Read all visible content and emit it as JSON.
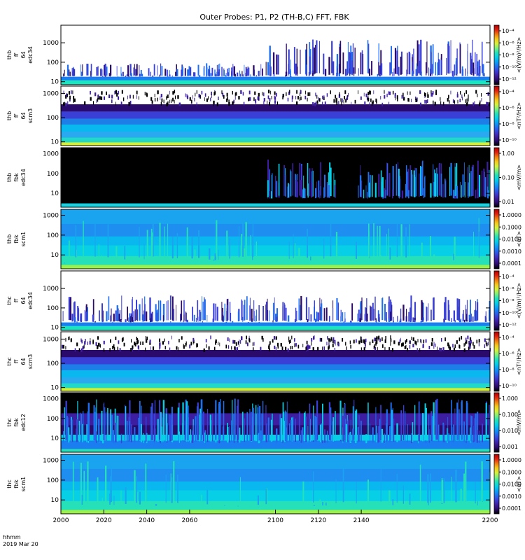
{
  "chart_data": {
    "type": "heatmap",
    "title": "Outer Probes: P1, P2 (TH-B,C) FFT, FBK",
    "x_axis": {
      "range": [
        2000,
        2200
      ],
      "ticks": [
        2000,
        2020,
        2040,
        2060,
        2100,
        2120,
        2140,
        2200
      ],
      "tick_labels": [
        "2000",
        "2020",
        "2040",
        "2060",
        "2100",
        "2120",
        "2140",
        "2200"
      ],
      "label_line1": "hhmm",
      "label_line2": "2019 Mar 20"
    },
    "y_scale": "log",
    "panels": [
      {
        "labels": [
          "thb",
          "ff",
          "64",
          "edc34"
        ],
        "yticks": [
          "1000",
          "100",
          "10"
        ],
        "ytick_values": [
          1000,
          100,
          10
        ],
        "ylim": [
          7,
          8000
        ],
        "colorbar": {
          "label": "<(V/m)²/Hz>",
          "ticks": [
            "10⁻⁴",
            "10⁻⁶",
            "10⁻⁸",
            "10⁻¹⁰",
            "10⁻¹²"
          ]
        },
        "style": "fft_e"
      },
      {
        "labels": [
          "thb",
          "ff",
          "64",
          "scm3"
        ],
        "yticks": [
          "1000",
          "100",
          "10"
        ],
        "ytick_values": [
          1000,
          100,
          10
        ],
        "ylim": [
          7,
          2000
        ],
        "colorbar": {
          "label": "<nT²/Hz>",
          "ticks": [
            "10⁻⁴",
            "10⁻⁶",
            "10⁻⁸",
            "10⁻¹⁰"
          ]
        },
        "style": "fft_b"
      },
      {
        "labels": [
          "thb",
          "fbk",
          "edc34"
        ],
        "yticks": [
          "1000",
          "100",
          "10"
        ],
        "ytick_values": [
          1000,
          100,
          10
        ],
        "ylim": [
          2,
          2000
        ],
        "colorbar": {
          "label": "<mV/m>",
          "ticks": [
            "1.00",
            "0.10",
            "0.01"
          ]
        },
        "style": "fbk_e_b"
      },
      {
        "labels": [
          "thb",
          "fbk",
          "scm1"
        ],
        "yticks": [
          "1000",
          "100",
          "10"
        ],
        "ytick_values": [
          1000,
          100,
          10
        ],
        "ylim": [
          2,
          2000
        ],
        "colorbar": {
          "label": "<nT>",
          "ticks": [
            "1.0000",
            "0.1000",
            "0.0100",
            "0.0010",
            "0.0001"
          ]
        },
        "style": "fbk_b"
      },
      {
        "labels": [
          "thc",
          "ff",
          "64",
          "edc34"
        ],
        "yticks": [
          "1000",
          "100",
          "10"
        ],
        "ytick_values": [
          1000,
          100,
          10
        ],
        "ylim": [
          7,
          8000
        ],
        "colorbar": {
          "label": "<(V/m)²/Hz>",
          "ticks": [
            "10⁻⁴",
            "10⁻⁶",
            "10⁻⁸",
            "10⁻¹⁰",
            "10⁻¹²"
          ]
        },
        "style": "fft_e_c"
      },
      {
        "labels": [
          "thc",
          "ff",
          "64",
          "scm3"
        ],
        "yticks": [
          "1000",
          "100",
          "10"
        ],
        "ytick_values": [
          1000,
          100,
          10
        ],
        "ylim": [
          7,
          2000
        ],
        "colorbar": {
          "label": "<nT²/Hz>",
          "ticks": [
            "10⁻⁴",
            "10⁻⁶",
            "10⁻⁸",
            "10⁻¹⁰"
          ]
        },
        "style": "fft_b"
      },
      {
        "labels": [
          "thc",
          "fbk",
          "edc12"
        ],
        "yticks": [
          "1000",
          "100",
          "10"
        ],
        "ytick_values": [
          1000,
          100,
          10
        ],
        "ylim": [
          2,
          2000
        ],
        "colorbar": {
          "label": "<mV/m>",
          "ticks": [
            "1.000",
            "0.100",
            "0.010",
            "0.001"
          ]
        },
        "style": "fbk_e_c"
      },
      {
        "labels": [
          "thc",
          "fbk",
          "scm1"
        ],
        "yticks": [
          "1000",
          "100",
          "10"
        ],
        "ytick_values": [
          1000,
          100,
          10
        ],
        "ylim": [
          2,
          2000
        ],
        "colorbar": {
          "label": "<nT>",
          "ticks": [
            "1.0000",
            "0.1000",
            "0.0100",
            "0.0010",
            "0.0001"
          ]
        },
        "style": "fbk_b"
      }
    ]
  }
}
